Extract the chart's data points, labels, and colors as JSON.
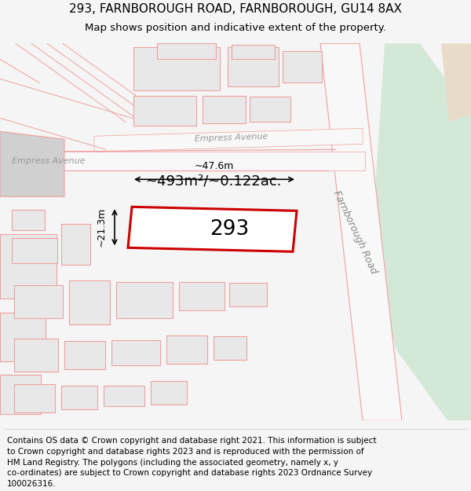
{
  "title_line1": "293, FARNBOROUGH ROAD, FARNBOROUGH, GU14 8AX",
  "title_line2": "Map shows position and indicative extent of the property.",
  "footer_lines": [
    "Contains OS data © Crown copyright and database right 2021. This information is subject",
    "to Crown copyright and database rights 2023 and is reproduced with the permission of",
    "HM Land Registry. The polygons (including the associated geometry, namely x, y",
    "co-ordinates) are subject to Crown copyright and database rights 2023 Ordnance Survey",
    "100026316."
  ],
  "area_label": "~493m²/~0.122ac.",
  "width_label": "~47.6m",
  "height_label": "~21.3m",
  "property_number": "293",
  "road_label": "Farnborough Road",
  "street_label1": "Empress Avenue",
  "street_label2": "Empress Avenue",
  "bg_color": "#f5f5f5",
  "map_bg": "#ffffff",
  "plot_outline_color": "#cc0000",
  "building_fill": "#e8e8e8",
  "road_line_color": "#f0a0a0",
  "green_area_color": "#d4e8d8",
  "tan_area_color": "#e8dcc8",
  "title_fontsize": 11,
  "footer_fontsize": 7.5
}
